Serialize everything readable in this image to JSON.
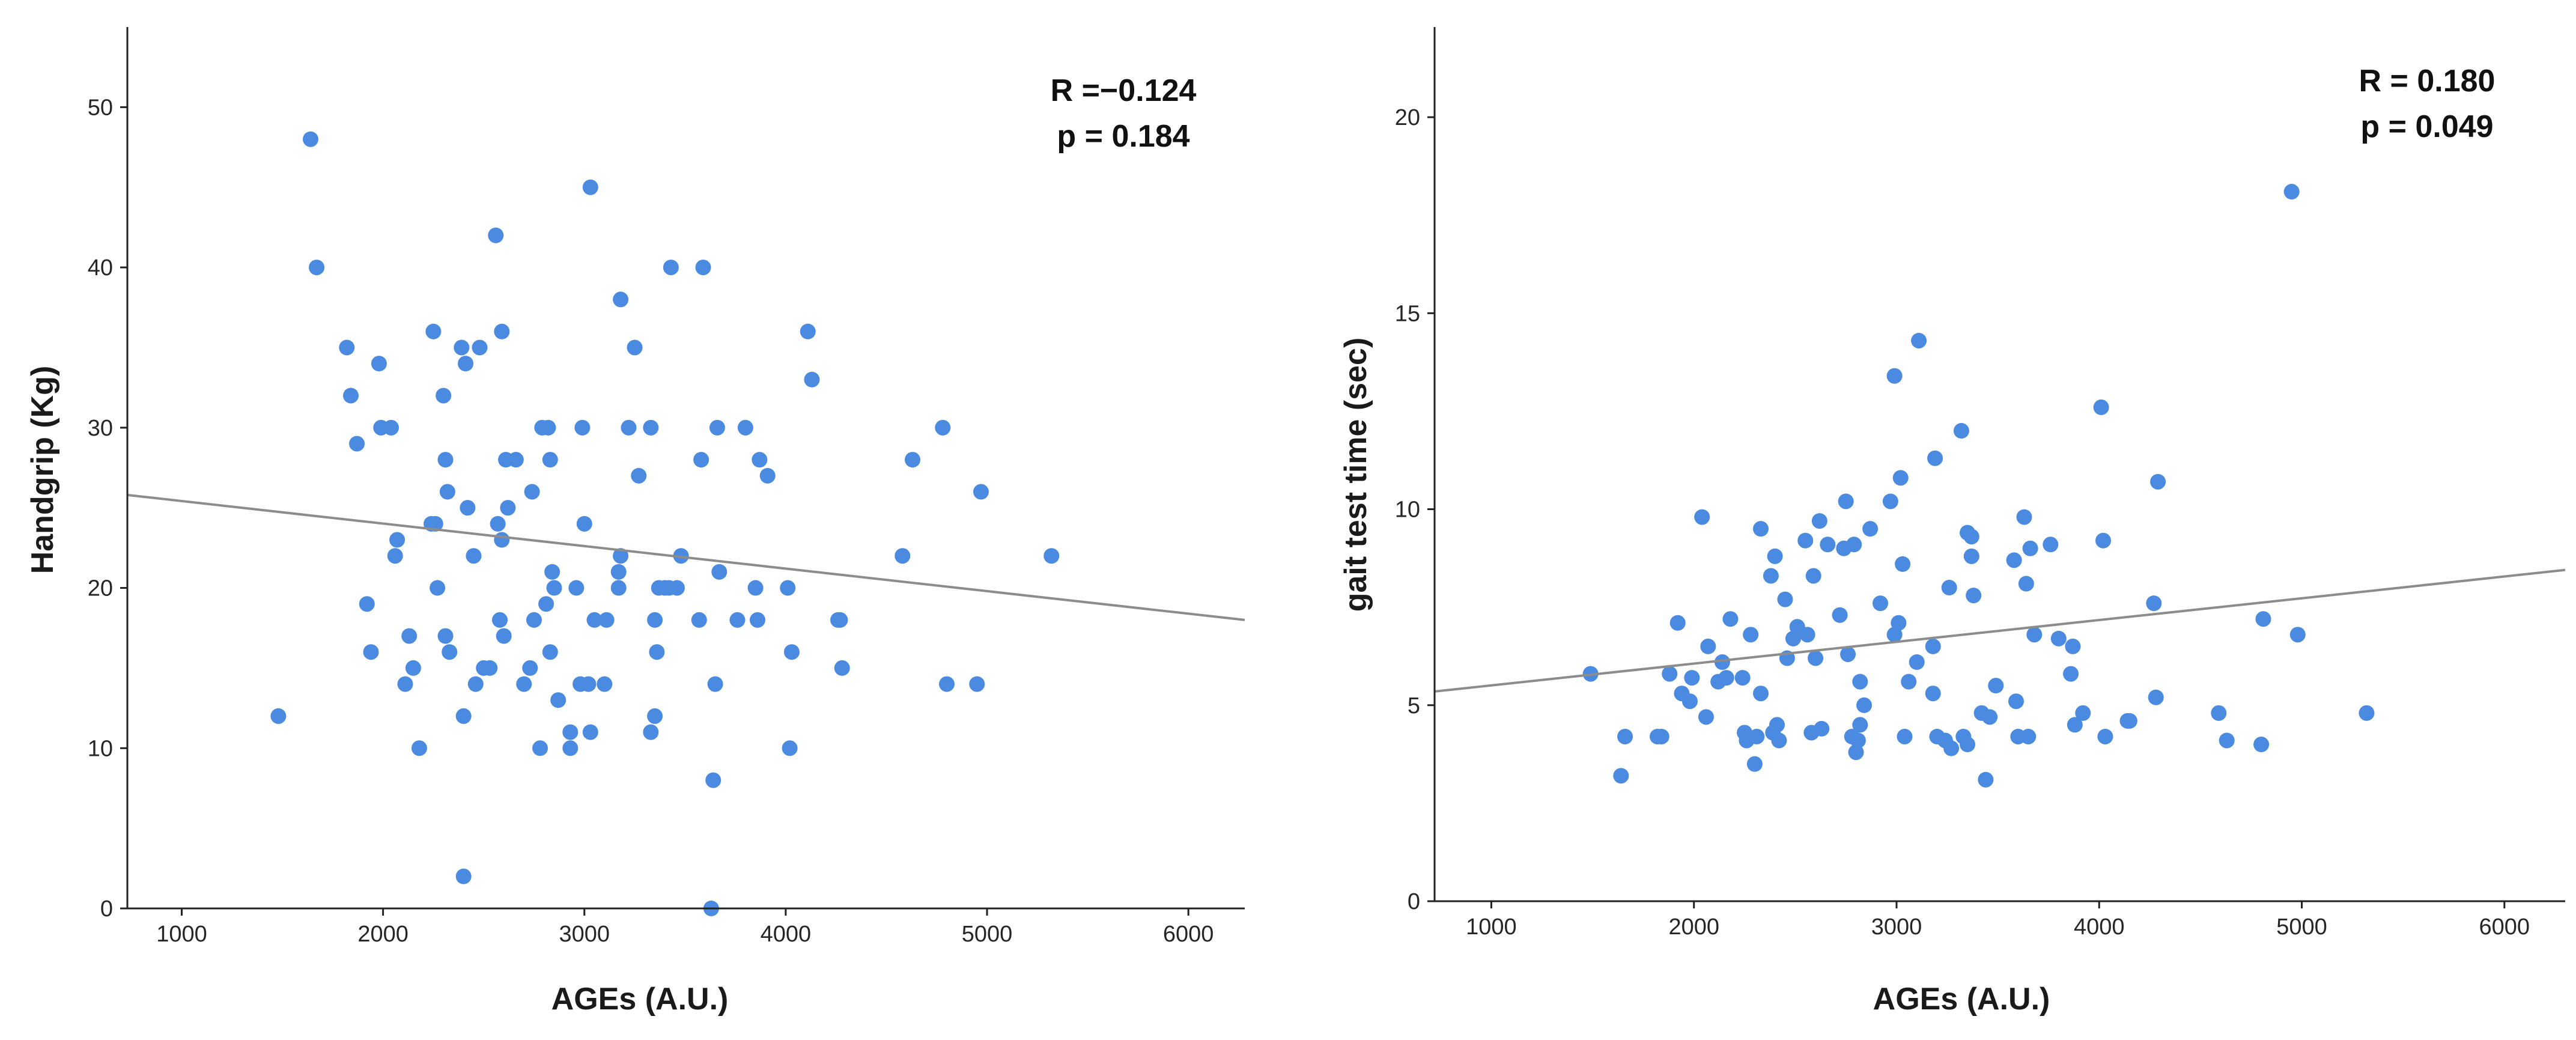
{
  "colors": {
    "point": "#4a8ae0",
    "fit_line": "#8c8c8c",
    "axis": "#222222"
  },
  "chart_data": [
    {
      "type": "scatter",
      "title": "",
      "xlabel": "AGEs (A.U.)",
      "ylabel": "Handgrip (Kg)",
      "xlim": [
        730,
        6280
      ],
      "ylim": [
        0,
        55
      ],
      "xticks": [
        1000,
        2000,
        3000,
        4000,
        5000,
        6000
      ],
      "yticks": [
        0,
        10,
        20,
        30,
        40,
        50
      ],
      "grid": false,
      "legend": "none",
      "annotations": [
        "R =−0.124",
        "p = 0.184"
      ],
      "fit_line": {
        "x": [
          730,
          6280
        ],
        "y": [
          25.8,
          18.0
        ]
      },
      "points": [
        [
          1480,
          12
        ],
        [
          1640,
          48
        ],
        [
          1670,
          40
        ],
        [
          1820,
          35
        ],
        [
          1840,
          32
        ],
        [
          1870,
          29
        ],
        [
          1920,
          19
        ],
        [
          1940,
          16
        ],
        [
          1980,
          34
        ],
        [
          1990,
          30
        ],
        [
          2040,
          30
        ],
        [
          2060,
          22
        ],
        [
          2070,
          23
        ],
        [
          2110,
          14
        ],
        [
          2130,
          17
        ],
        [
          2150,
          15
        ],
        [
          2180,
          10
        ],
        [
          2240,
          24
        ],
        [
          2250,
          36
        ],
        [
          2260,
          24
        ],
        [
          2270,
          20
        ],
        [
          2300,
          32
        ],
        [
          2310,
          17
        ],
        [
          2310,
          28
        ],
        [
          2320,
          26
        ],
        [
          2330,
          16
        ],
        [
          2390,
          35
        ],
        [
          2400,
          2
        ],
        [
          2400,
          12
        ],
        [
          2410,
          34
        ],
        [
          2420,
          25
        ],
        [
          2450,
          22
        ],
        [
          2460,
          14
        ],
        [
          2480,
          35
        ],
        [
          2500,
          15
        ],
        [
          2530,
          15
        ],
        [
          2560,
          42
        ],
        [
          2570,
          24
        ],
        [
          2580,
          18
        ],
        [
          2590,
          36
        ],
        [
          2590,
          23
        ],
        [
          2600,
          17
        ],
        [
          2610,
          28
        ],
        [
          2620,
          25
        ],
        [
          2660,
          28
        ],
        [
          2700,
          14
        ],
        [
          2730,
          15
        ],
        [
          2740,
          26
        ],
        [
          2750,
          18
        ],
        [
          2780,
          10
        ],
        [
          2790,
          30
        ],
        [
          2810,
          19
        ],
        [
          2820,
          30
        ],
        [
          2830,
          16
        ],
        [
          2830,
          28
        ],
        [
          2840,
          21
        ],
        [
          2850,
          20
        ],
        [
          2870,
          13
        ],
        [
          2930,
          10
        ],
        [
          2930,
          11
        ],
        [
          2960,
          20
        ],
        [
          2980,
          14
        ],
        [
          2990,
          30
        ],
        [
          3000,
          24
        ],
        [
          3020,
          14
        ],
        [
          3030,
          45
        ],
        [
          3030,
          11
        ],
        [
          3050,
          18
        ],
        [
          3100,
          14
        ],
        [
          3110,
          18
        ],
        [
          3170,
          21
        ],
        [
          3170,
          20
        ],
        [
          3180,
          38
        ],
        [
          3180,
          22
        ],
        [
          3220,
          30
        ],
        [
          3250,
          35
        ],
        [
          3270,
          27
        ],
        [
          3330,
          30
        ],
        [
          3330,
          11
        ],
        [
          3350,
          12
        ],
        [
          3350,
          18
        ],
        [
          3360,
          16
        ],
        [
          3370,
          20
        ],
        [
          3400,
          20
        ],
        [
          3420,
          20
        ],
        [
          3430,
          40
        ],
        [
          3460,
          20
        ],
        [
          3480,
          22
        ],
        [
          3570,
          18
        ],
        [
          3580,
          28
        ],
        [
          3590,
          40
        ],
        [
          3630,
          0
        ],
        [
          3640,
          8
        ],
        [
          3650,
          14
        ],
        [
          3660,
          30
        ],
        [
          3670,
          21
        ],
        [
          3760,
          18
        ],
        [
          3800,
          30
        ],
        [
          3850,
          20
        ],
        [
          3860,
          18
        ],
        [
          3870,
          28
        ],
        [
          3910,
          27
        ],
        [
          4010,
          20
        ],
        [
          4020,
          10
        ],
        [
          4030,
          16
        ],
        [
          4110,
          36
        ],
        [
          4130,
          33
        ],
        [
          4260,
          18
        ],
        [
          4270,
          18
        ],
        [
          4280,
          15
        ],
        [
          4580,
          22
        ],
        [
          4630,
          28
        ],
        [
          4780,
          30
        ],
        [
          4800,
          14
        ],
        [
          4950,
          14
        ],
        [
          4970,
          26
        ],
        [
          5320,
          22
        ]
      ]
    },
    {
      "type": "scatter",
      "title": "",
      "xlabel": "AGEs (A.U.)",
      "ylabel": "gait test time (sec)",
      "xlim": [
        720,
        6300
      ],
      "ylim": [
        0,
        22.3
      ],
      "xticks": [
        1000,
        2000,
        3000,
        4000,
        5000,
        6000
      ],
      "yticks": [
        0,
        5,
        10,
        15,
        20
      ],
      "grid": false,
      "legend": "none",
      "annotations": [
        "R = 0.180",
        "p = 0.049"
      ],
      "fit_line": {
        "x": [
          720,
          6300
        ],
        "y": [
          5.35,
          8.45
        ]
      },
      "points": [
        [
          1490,
          5.8
        ],
        [
          1640,
          3.2
        ],
        [
          1660,
          4.2
        ],
        [
          1820,
          4.2
        ],
        [
          1840,
          4.2
        ],
        [
          1880,
          5.8
        ],
        [
          1920,
          7.1
        ],
        [
          1940,
          5.3
        ],
        [
          1980,
          5.1
        ],
        [
          1990,
          5.7
        ],
        [
          2040,
          9.8
        ],
        [
          2060,
          4.7
        ],
        [
          2070,
          6.5
        ],
        [
          2120,
          5.6
        ],
        [
          2140,
          6.1
        ],
        [
          2160,
          5.7
        ],
        [
          2180,
          7.2
        ],
        [
          2240,
          5.7
        ],
        [
          2250,
          4.3
        ],
        [
          2260,
          4.1
        ],
        [
          2280,
          6.8
        ],
        [
          2300,
          3.5
        ],
        [
          2310,
          4.2
        ],
        [
          2330,
          5.3
        ],
        [
          2330,
          9.5
        ],
        [
          2380,
          8.3
        ],
        [
          2390,
          4.3
        ],
        [
          2400,
          8.8
        ],
        [
          2410,
          4.5
        ],
        [
          2420,
          4.1
        ],
        [
          2450,
          7.7
        ],
        [
          2460,
          6.2
        ],
        [
          2490,
          6.7
        ],
        [
          2510,
          7.0
        ],
        [
          2550,
          9.2
        ],
        [
          2560,
          6.8
        ],
        [
          2580,
          4.3
        ],
        [
          2590,
          8.3
        ],
        [
          2600,
          6.2
        ],
        [
          2620,
          9.7
        ],
        [
          2630,
          4.4
        ],
        [
          2660,
          9.1
        ],
        [
          2720,
          7.3
        ],
        [
          2740,
          9.0
        ],
        [
          2750,
          10.2
        ],
        [
          2760,
          6.3
        ],
        [
          2780,
          4.2
        ],
        [
          2790,
          9.1
        ],
        [
          2800,
          3.8
        ],
        [
          2810,
          4.1
        ],
        [
          2820,
          5.6
        ],
        [
          2820,
          4.5
        ],
        [
          2840,
          5.0
        ],
        [
          2870,
          9.5
        ],
        [
          2920,
          7.6
        ],
        [
          2970,
          10.2
        ],
        [
          2990,
          6.8
        ],
        [
          2990,
          13.4
        ],
        [
          3010,
          7.1
        ],
        [
          3020,
          10.8
        ],
        [
          3030,
          8.6
        ],
        [
          3040,
          4.2
        ],
        [
          3060,
          5.6
        ],
        [
          3100,
          6.1
        ],
        [
          3110,
          14.3
        ],
        [
          3180,
          6.5
        ],
        [
          3180,
          5.3
        ],
        [
          3190,
          11.3
        ],
        [
          3200,
          4.2
        ],
        [
          3240,
          4.1
        ],
        [
          3260,
          8.0
        ],
        [
          3270,
          3.9
        ],
        [
          3320,
          12.0
        ],
        [
          3330,
          4.2
        ],
        [
          3350,
          9.4
        ],
        [
          3350,
          4.0
        ],
        [
          3370,
          8.8
        ],
        [
          3370,
          9.3
        ],
        [
          3380,
          7.8
        ],
        [
          3420,
          4.8
        ],
        [
          3440,
          3.1
        ],
        [
          3460,
          4.7
        ],
        [
          3490,
          5.5
        ],
        [
          3580,
          8.7
        ],
        [
          3590,
          5.1
        ],
        [
          3600,
          4.2
        ],
        [
          3630,
          9.8
        ],
        [
          3640,
          8.1
        ],
        [
          3650,
          4.2
        ],
        [
          3660,
          9.0
        ],
        [
          3680,
          6.8
        ],
        [
          3760,
          9.1
        ],
        [
          3800,
          6.7
        ],
        [
          3860,
          5.8
        ],
        [
          3870,
          6.5
        ],
        [
          3880,
          4.5
        ],
        [
          3920,
          4.8
        ],
        [
          4010,
          12.6
        ],
        [
          4020,
          9.2
        ],
        [
          4030,
          4.2
        ],
        [
          4140,
          4.6
        ],
        [
          4150,
          4.6
        ],
        [
          4270,
          7.6
        ],
        [
          4280,
          5.2
        ],
        [
          4290,
          10.7
        ],
        [
          4590,
          4.8
        ],
        [
          4630,
          4.1
        ],
        [
          4800,
          4.0
        ],
        [
          4810,
          7.2
        ],
        [
          4950,
          18.1
        ],
        [
          4980,
          6.8
        ],
        [
          5320,
          4.8
        ]
      ]
    }
  ]
}
